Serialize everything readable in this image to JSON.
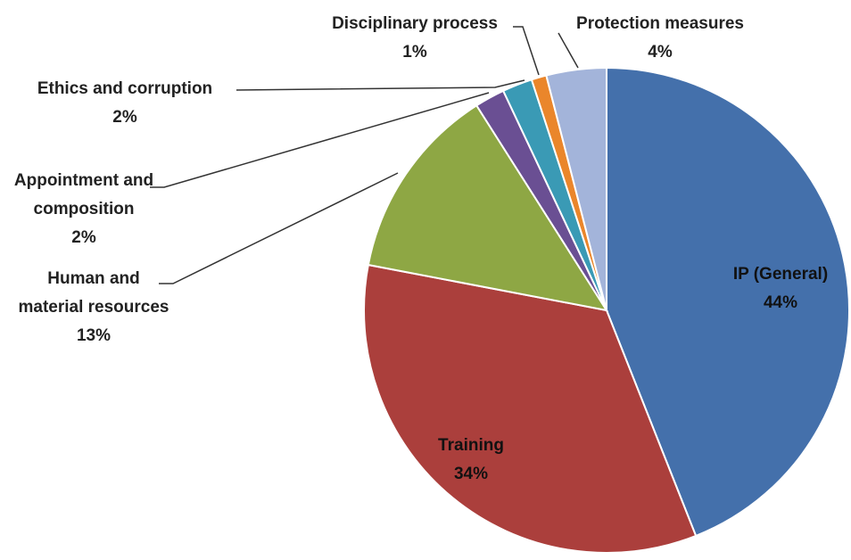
{
  "chart_data": {
    "type": "pie",
    "categories": [
      "IP (General)",
      "Training",
      "Human and material resources",
      "Appointment and composition",
      "Ethics and corruption",
      "Disciplinary process",
      "Protection measures"
    ],
    "values": [
      44,
      34,
      13,
      2,
      2,
      1,
      4
    ],
    "value_labels": [
      "44%",
      "34%",
      "13%",
      "2%",
      "2%",
      "1%",
      "4%"
    ],
    "colors": [
      "#4470ab",
      "#ab3f3c",
      "#8ea744",
      "#6a4f93",
      "#3a9ab5",
      "#ea862b",
      "#a3b4da"
    ]
  }
}
